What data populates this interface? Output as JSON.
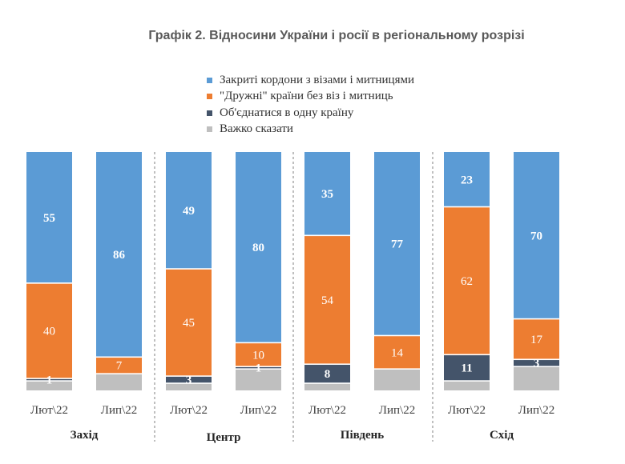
{
  "chart_data": {
    "type": "bar",
    "stacked": true,
    "normalized": true,
    "title": "Графік 2. Відносини України і росії в регіональному розрізі",
    "legend_position": "top",
    "series": [
      {
        "name": "Закриті кордони з візами і митницями",
        "color": "#5B9BD5"
      },
      {
        "name": "\"Дружні\" країни без віз і митниць",
        "color": "#ED7D31"
      },
      {
        "name": "Об'єднатися в одну країну",
        "color": "#44546A"
      },
      {
        "name": "Важко сказати",
        "color": "#BFBFBF"
      }
    ],
    "groups": [
      {
        "name": "Захід",
        "bars": [
          {
            "label": "Лют\\22",
            "values": [
              55,
              40,
              1,
              4
            ]
          },
          {
            "label": "Лип\\22",
            "values": [
              86,
              7,
              0,
              7
            ]
          }
        ]
      },
      {
        "name": "Центр",
        "bars": [
          {
            "label": "Лют\\22",
            "values": [
              49,
              45,
              3,
              3
            ]
          },
          {
            "label": "Лип\\22",
            "values": [
              80,
              10,
              1,
              9
            ]
          }
        ]
      },
      {
        "name": "Південь",
        "bars": [
          {
            "label": "Лют\\22",
            "values": [
              35,
              54,
              8,
              3
            ]
          },
          {
            "label": "Лип\\22",
            "values": [
              77,
              14,
              0,
              9
            ]
          }
        ]
      },
      {
        "name": "Схід",
        "bars": [
          {
            "label": "Лют\\22",
            "values": [
              23,
              62,
              11,
              4
            ]
          },
          {
            "label": "Лип\\22",
            "values": [
              70,
              17,
              3,
              10
            ]
          }
        ]
      }
    ],
    "data_labels_shown": [
      [
        [
          55,
          40,
          1,
          null
        ],
        [
          86,
          7,
          null,
          null
        ]
      ],
      [
        [
          49,
          45,
          3,
          null
        ],
        [
          80,
          10,
          1,
          null
        ]
      ],
      [
        [
          35,
          54,
          8,
          null
        ],
        [
          77,
          14,
          null,
          null
        ]
      ],
      [
        [
          23,
          62,
          11,
          null
        ],
        [
          70,
          17,
          3,
          null
        ]
      ]
    ]
  }
}
